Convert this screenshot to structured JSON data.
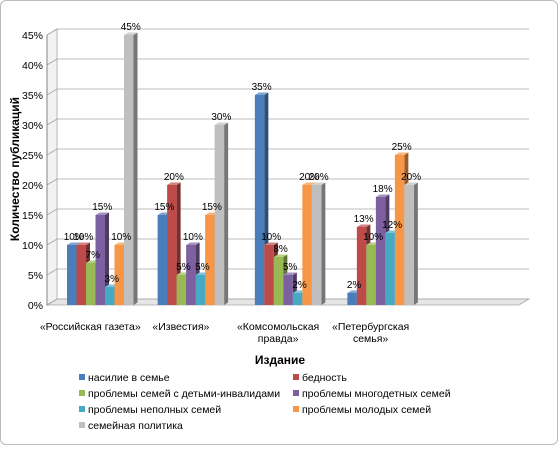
{
  "chart_data": {
    "type": "bar",
    "xlabel": "Издание",
    "ylabel": "Количество публикаций",
    "ylim": [
      0,
      45
    ],
    "yticks": [
      "0%",
      "5%",
      "10%",
      "15%",
      "20%",
      "25%",
      "30%",
      "35%",
      "40%",
      "45%"
    ],
    "tick_step": 5,
    "unit": "%",
    "grid": true,
    "legend_position": "bottom",
    "categories": [
      [
        "«Российская газета»"
      ],
      [
        "«Известия»"
      ],
      [
        "«Комсомольская",
        "правда»"
      ],
      [
        "«Петербургская",
        "семья»"
      ]
    ],
    "series": [
      {
        "name": "насилие в семье",
        "values": [
          10,
          15,
          35,
          2
        ],
        "color": "#4a7ebb"
      },
      {
        "name": "бедность",
        "values": [
          10,
          20,
          10,
          13
        ],
        "color": "#be4b48"
      },
      {
        "name": "проблемы семей с детьми-инвалидами",
        "values": [
          7,
          5,
          8,
          10
        ],
        "color": "#98b954"
      },
      {
        "name": "проблемы многодетных семей",
        "values": [
          15,
          10,
          5,
          18
        ],
        "color": "#7d60a0"
      },
      {
        "name": "проблемы неполных семей",
        "values": [
          3,
          5,
          2,
          12
        ],
        "color": "#46aac5"
      },
      {
        "name": "проблемы молодых семей",
        "values": [
          10,
          15,
          20,
          25
        ],
        "color": "#f79646"
      },
      {
        "name": "семейная политика",
        "values": [
          45,
          30,
          20,
          20
        ],
        "color": "#bfbfbf"
      }
    ]
  }
}
